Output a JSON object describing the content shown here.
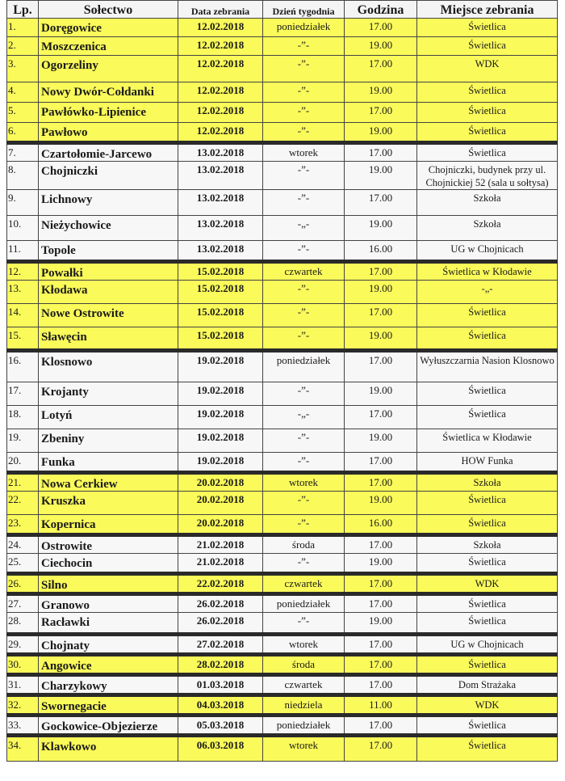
{
  "colors": {
    "highlight": "#fafa5a",
    "text": "#1a1a1a"
  },
  "headers": {
    "lp": "Lp.",
    "solectwo": "Sołectwo",
    "data": "Data zebrania",
    "dzien": "Dzień tygodnia",
    "godzina": "Godzina",
    "miejsce": "Miejsce zebrania"
  },
  "rows": [
    {
      "lp": "1.",
      "name": "Doręgowice",
      "date": "12.02.2018",
      "day": "poniedziałek",
      "time": "17.00",
      "place": "Świetlica",
      "highlight": true
    },
    {
      "lp": "2.",
      "name": "Moszczenica",
      "date": "12.02.2018",
      "day": "-”-",
      "time": "19.00",
      "place": "Świetlica",
      "highlight": true
    },
    {
      "lp": "3.",
      "name": "Ogorzeliny",
      "date": "12.02.2018",
      "day": "-”-",
      "time": "17.00",
      "place": "WDK",
      "highlight": true
    },
    {
      "lp": "4.",
      "name": "Nowy Dwór-Cołdanki",
      "date": "12.02.2018",
      "day": "-”-",
      "time": "19.00",
      "place": "Świetlica",
      "highlight": true
    },
    {
      "lp": "5.",
      "name": "Pawłówko-Lipienice",
      "date": "12.02.2018",
      "day": "-”-",
      "time": "17.00",
      "place": "Świetlica",
      "highlight": true
    },
    {
      "lp": "6.",
      "name": "Pawłowo",
      "date": "12.02.2018",
      "day": "-”-",
      "time": "19.00",
      "place": "Świetlica",
      "highlight": true
    },
    {
      "lp": "7.",
      "name": "Czartołomie-Jarcewo",
      "date": "13.02.2018",
      "day": "wtorek",
      "time": "17.00",
      "place": "Świetlica",
      "highlight": false
    },
    {
      "lp": "8.",
      "name": "Chojniczki",
      "date": "13.02.2018",
      "day": "-”-",
      "time": "19.00",
      "place": "Chojniczki, budynek przy ul. Chojnickiej 52 (sala u sołtysa)",
      "highlight": false
    },
    {
      "lp": "9.",
      "name": "Lichnowy",
      "date": "13.02.2018",
      "day": "-”-",
      "time": "17.00",
      "place": "Szkoła",
      "highlight": false
    },
    {
      "lp": "10.",
      "name": "Nieżychowice",
      "date": "13.02.2018",
      "day": "-„-",
      "time": "19.00",
      "place": "Szkoła",
      "highlight": false
    },
    {
      "lp": "11.",
      "name": "Topole",
      "date": "13.02.2018",
      "day": "-”-",
      "time": "16.00",
      "place": "UG w Chojnicach",
      "highlight": false
    },
    {
      "lp": "12.",
      "name": "Powałki",
      "date": "15.02.2018",
      "day": "czwartek",
      "time": "17.00",
      "place": "Świetlica w Kłodawie",
      "highlight": true
    },
    {
      "lp": "13.",
      "name": "Kłodawa",
      "date": "15.02.2018",
      "day": "-”-",
      "time": "19.00",
      "place": "-„-",
      "highlight": true
    },
    {
      "lp": "14.",
      "name": "Nowe Ostrowite",
      "date": "15.02.2018",
      "day": "-”-",
      "time": "17.00",
      "place": "Świetlica",
      "highlight": true
    },
    {
      "lp": "15.",
      "name": "Sławęcin",
      "date": "15.02.2018",
      "day": "-”-",
      "time": "19.00",
      "place": "Świetlica",
      "highlight": true
    },
    {
      "lp": "16.",
      "name": "Klosnowo",
      "date": "19.02.2018",
      "day": "poniedziałek",
      "time": "17.00",
      "place": "Wyłuszczarnia Nasion Klosnowo",
      "highlight": false
    },
    {
      "lp": "17.",
      "name": "Krojanty",
      "date": "19.02.2018",
      "day": "-”-",
      "time": "19.00",
      "place": "Świetlica",
      "highlight": false
    },
    {
      "lp": "18.",
      "name": "Lotyń",
      "date": "19.02.2018",
      "day": "-„-",
      "time": "17.00",
      "place": "Świetlica",
      "highlight": false
    },
    {
      "lp": "19.",
      "name": "Zbeniny",
      "date": "19.02.2018",
      "day": "-”-",
      "time": "19.00",
      "place": "Świetlica w Kłodawie",
      "highlight": false
    },
    {
      "lp": "20.",
      "name": "Funka",
      "date": "19.02.2018",
      "day": "-”-",
      "time": "17.00",
      "place": "HOW Funka",
      "highlight": false
    },
    {
      "lp": "21.",
      "name": "Nowa Cerkiew",
      "date": "20.02.2018",
      "day": "wtorek",
      "time": "17.00",
      "place": "Szkoła",
      "highlight": true
    },
    {
      "lp": "22.",
      "name": "Kruszka",
      "date": "20.02.2018",
      "day": "-”-",
      "time": "19.00",
      "place": "Świetlica",
      "highlight": true
    },
    {
      "lp": "23.",
      "name": "Kopernica",
      "date": "20.02.2018",
      "day": "-”-",
      "time": "16.00",
      "place": "Świetlica",
      "highlight": true
    },
    {
      "lp": "24.",
      "name": "Ostrowite",
      "date": "21.02.2018",
      "day": "środa",
      "time": "17.00",
      "place": "Szkoła",
      "highlight": false
    },
    {
      "lp": "25.",
      "name": "Ciechocin",
      "date": "21.02.2018",
      "day": "-”-",
      "time": "19.00",
      "place": "Świetlica",
      "highlight": false
    },
    {
      "lp": "26.",
      "name": "Silno",
      "date": "22.02.2018",
      "day": "czwartek",
      "time": "17.00",
      "place": "WDK",
      "highlight": true
    },
    {
      "lp": "27.",
      "name": "Granowo",
      "date": "26.02.2018",
      "day": "poniedziałek",
      "time": "17.00",
      "place": "Świetlica",
      "highlight": false
    },
    {
      "lp": "28.",
      "name": "Racławki",
      "date": "26.02.2018",
      "day": "-”-",
      "time": "19.00",
      "place": "Świetlica",
      "highlight": false
    },
    {
      "lp": "29.",
      "name": "Chojnaty",
      "date": "27.02.2018",
      "day": "wtorek",
      "time": "17.00",
      "place": "UG w Chojnicach",
      "highlight": false
    },
    {
      "lp": "30.",
      "name": "Angowice",
      "date": "28.02.2018",
      "day": "środa",
      "time": "17.00",
      "place": "Świetlica",
      "highlight": true
    },
    {
      "lp": "31.",
      "name": "Charzykowy",
      "date": "01.03.2018",
      "day": "czwartek",
      "time": "17.00",
      "place": "Dom Strażaka",
      "highlight": false
    },
    {
      "lp": "32.",
      "name": "Swornegacie",
      "date": "04.03.2018",
      "day": "niedziela",
      "time": "11.00",
      "place": "WDK",
      "highlight": true
    },
    {
      "lp": "33.",
      "name": "Gockowice-Objezierze",
      "date": "05.03.2018",
      "day": "poniedziałek",
      "time": "17.00",
      "place": "Świetlica",
      "highlight": false
    },
    {
      "lp": "34.",
      "name": "Klawkowo",
      "date": "06.03.2018",
      "day": "wtorek",
      "time": "17.00",
      "place": "Świetlica",
      "highlight": true
    }
  ]
}
